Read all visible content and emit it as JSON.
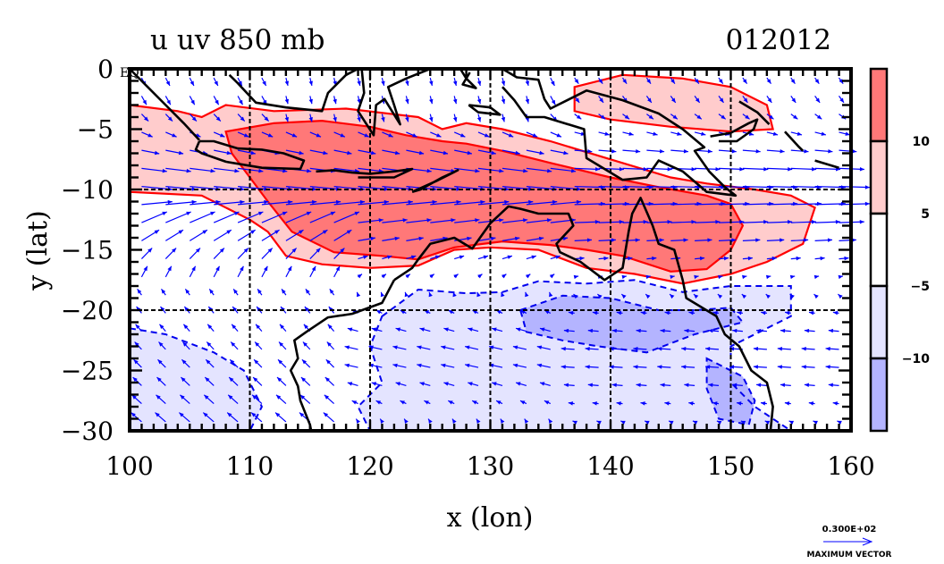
{
  "chart_data": {
    "type": "heatmap",
    "subtype": "filled-contour-with-wind-vectors",
    "title": "u uv 850 mb",
    "date_label": "012012",
    "xlabel": "x (lon)",
    "ylabel": "y (lat)",
    "xlim": [
      100,
      160
    ],
    "ylim": [
      -30,
      0
    ],
    "x_ticks": [
      100,
      110,
      120,
      130,
      140,
      150,
      160
    ],
    "y_ticks": [
      0,
      -5,
      -10,
      -15,
      -20,
      -25,
      -30
    ],
    "y_tick_labels": [
      "0",
      "−5",
      "−10",
      "−15",
      "−20",
      "−25",
      "−30"
    ],
    "y_zero_suffix": "EQ",
    "grid_lon": [
      110,
      120,
      130,
      140,
      150
    ],
    "grid_lat": [
      -10,
      -20
    ],
    "grid": true,
    "colorbar": {
      "placement": "right",
      "levels": [
        10,
        5,
        -5,
        -10
      ],
      "level_labels": [
        "10",
        "5",
        "−5",
        "−10"
      ],
      "bands": [
        {
          "range": ">10",
          "color": "#ff7878"
        },
        {
          "range": "5 to 10",
          "color": "#ffcccc"
        },
        {
          "range": "-5 to 5",
          "color": "#ffffff"
        },
        {
          "range": "-10 to -5",
          "color": "#e4e4ff"
        },
        {
          "range": "<-10",
          "color": "#b4b4ff"
        }
      ]
    },
    "contour_color_positive": "#ff0000",
    "contour_color_negative": "#0000ee",
    "vector_color": "#0000ff",
    "coast_color": "#000000",
    "regions": [
      {
        "name": "u-gt-5-west",
        "level": "5 to 10",
        "lonlat": [
          [
            100,
            -3
          ],
          [
            104,
            -3.5
          ],
          [
            106,
            -4
          ],
          [
            108,
            -3
          ],
          [
            112,
            -3.5
          ],
          [
            118,
            -3.3
          ],
          [
            124,
            -4
          ],
          [
            126,
            -5
          ],
          [
            128,
            -4.5
          ],
          [
            131,
            -5
          ],
          [
            135,
            -6
          ],
          [
            140,
            -7.5
          ],
          [
            145,
            -9
          ],
          [
            148,
            -9.5
          ],
          [
            152,
            -10
          ],
          [
            155,
            -10.5
          ],
          [
            157,
            -11.5
          ],
          [
            156,
            -14.5
          ],
          [
            153,
            -16
          ],
          [
            150,
            -17
          ],
          [
            146,
            -17.8
          ],
          [
            142,
            -17
          ],
          [
            138,
            -16.5
          ],
          [
            134,
            -15
          ],
          [
            130,
            -14.8
          ],
          [
            127,
            -15
          ],
          [
            124,
            -16.3
          ],
          [
            120,
            -16.5
          ],
          [
            116,
            -16.2
          ],
          [
            113,
            -15.5
          ],
          [
            111.5,
            -13.5
          ],
          [
            110,
            -12.5
          ],
          [
            108,
            -11.5
          ],
          [
            106,
            -10.5
          ],
          [
            100,
            -10.2
          ]
        ]
      },
      {
        "name": "u-gt-5-northeast",
        "level": "5 to 10",
        "lonlat": [
          [
            137,
            -1.5
          ],
          [
            141,
            -0.5
          ],
          [
            146,
            -0.8
          ],
          [
            150,
            -1.5
          ],
          [
            153,
            -3
          ],
          [
            153.5,
            -5
          ],
          [
            150,
            -5.2
          ],
          [
            145,
            -4.8
          ],
          [
            140,
            -4.2
          ],
          [
            137,
            -3.5
          ]
        ]
      },
      {
        "name": "u-gt-10-core",
        "level": ">10",
        "lonlat": [
          [
            108,
            -5.2
          ],
          [
            112,
            -4.5
          ],
          [
            116,
            -4.3
          ],
          [
            120,
            -4.8
          ],
          [
            123,
            -5.5
          ],
          [
            126,
            -6
          ],
          [
            128,
            -6.2
          ],
          [
            131,
            -6.8
          ],
          [
            135,
            -7.8
          ],
          [
            140,
            -9
          ],
          [
            144,
            -9.8
          ],
          [
            148,
            -10.5
          ],
          [
            150,
            -11.2
          ],
          [
            151,
            -13
          ],
          [
            150,
            -15
          ],
          [
            148,
            -16.6
          ],
          [
            145,
            -16.8
          ],
          [
            141,
            -15.5
          ],
          [
            138,
            -15
          ],
          [
            135,
            -14.6
          ],
          [
            131,
            -14.3
          ],
          [
            127,
            -14.8
          ],
          [
            124,
            -15.8
          ],
          [
            121,
            -15.5
          ],
          [
            117,
            -15.2
          ],
          [
            113.5,
            -13.5
          ],
          [
            111.5,
            -11
          ],
          [
            110,
            -9
          ],
          [
            108.5,
            -7
          ]
        ]
      },
      {
        "name": "u-lt-neg5-south",
        "level": "-10 to -5",
        "lonlat": [
          [
            121,
            -20.5
          ],
          [
            124,
            -18.3
          ],
          [
            128,
            -18.6
          ],
          [
            131,
            -18.5
          ],
          [
            134,
            -17.6
          ],
          [
            138,
            -17.8
          ],
          [
            142,
            -17.5
          ],
          [
            146,
            -18.5
          ],
          [
            150,
            -18
          ],
          [
            155,
            -18
          ],
          [
            155,
            -20.5
          ],
          [
            152,
            -22
          ],
          [
            150,
            -23
          ],
          [
            150,
            -26
          ],
          [
            152,
            -28
          ],
          [
            155,
            -30
          ],
          [
            120,
            -30
          ],
          [
            119,
            -28
          ],
          [
            121,
            -26
          ],
          [
            120,
            -23
          ]
        ]
      },
      {
        "name": "u-lt-neg5-southwest",
        "level": "-10 to -5",
        "lonlat": [
          [
            100,
            -21.5
          ],
          [
            103,
            -22
          ],
          [
            107,
            -23.5
          ],
          [
            109.5,
            -25
          ],
          [
            111,
            -28
          ],
          [
            110,
            -30
          ],
          [
            100,
            -30
          ]
        ]
      },
      {
        "name": "u-lt-neg10-core",
        "level": "<-10",
        "lonlat": [
          [
            132.5,
            -20
          ],
          [
            136,
            -18.8
          ],
          [
            140,
            -19
          ],
          [
            144,
            -20
          ],
          [
            147,
            -20
          ],
          [
            150,
            -19.8
          ],
          [
            151,
            -21
          ],
          [
            147,
            -22
          ],
          [
            143,
            -23.5
          ],
          [
            139,
            -23
          ],
          [
            136,
            -22.5
          ],
          [
            133,
            -21.8
          ]
        ]
      },
      {
        "name": "u-lt-neg10-coast",
        "level": "<-10",
        "lonlat": [
          [
            148,
            -24
          ],
          [
            151,
            -25.5
          ],
          [
            152,
            -27.5
          ],
          [
            151.5,
            -29.5
          ],
          [
            149,
            -29
          ],
          [
            148,
            -26.5
          ]
        ]
      }
    ],
    "coastlines": [
      {
        "name": "sumatra",
        "lonlat": [
          [
            100,
            0
          ],
          [
            101.5,
            -1.5
          ],
          [
            103,
            -3
          ],
          [
            104.5,
            -4.5
          ],
          [
            105.8,
            -5.9
          ]
        ]
      },
      {
        "name": "borneo",
        "lonlat": [
          [
            108.3,
            -0.5
          ],
          [
            109,
            -1.2
          ],
          [
            110.5,
            -2.8
          ],
          [
            113,
            -3.2
          ],
          [
            116,
            -3.5
          ],
          [
            116.5,
            -2
          ],
          [
            118,
            -0.5
          ],
          [
            119,
            0
          ]
        ]
      },
      {
        "name": "java",
        "lonlat": [
          [
            105.8,
            -6
          ],
          [
            107,
            -6
          ],
          [
            109,
            -6.6
          ],
          [
            111,
            -6.7
          ],
          [
            112.8,
            -7
          ],
          [
            114.5,
            -7.6
          ],
          [
            114.2,
            -8.3
          ],
          [
            111,
            -8.2
          ],
          [
            108,
            -7.7
          ],
          [
            106,
            -7
          ],
          [
            105.5,
            -6.7
          ],
          [
            105.8,
            -6
          ]
        ]
      },
      {
        "name": "lesser-sunda",
        "lonlat": [
          [
            115.5,
            -8.5
          ],
          [
            117,
            -8.4
          ],
          [
            118.5,
            -8.6
          ],
          [
            120,
            -8.7
          ],
          [
            122,
            -8.5
          ],
          [
            123.5,
            -8.3
          ],
          [
            122,
            -9
          ],
          [
            119,
            -9
          ]
        ]
      },
      {
        "name": "timor",
        "lonlat": [
          [
            123.5,
            -10.2
          ],
          [
            125.5,
            -9.3
          ],
          [
            127.3,
            -8.4
          ],
          [
            126,
            -9
          ],
          [
            124.2,
            -10
          ],
          [
            123.5,
            -10.2
          ]
        ]
      },
      {
        "name": "sulawesi",
        "lonlat": [
          [
            119.3,
            0
          ],
          [
            119.5,
            -2
          ],
          [
            119,
            -3.5
          ],
          [
            120.3,
            -5.5
          ],
          [
            120.5,
            -3
          ],
          [
            121.2,
            -2.5
          ],
          [
            122.5,
            -4.6
          ],
          [
            122,
            -3
          ],
          [
            121.5,
            -1.5
          ],
          [
            123,
            -0.8
          ],
          [
            125,
            0
          ]
        ]
      },
      {
        "name": "halmahera",
        "lonlat": [
          [
            127.5,
            0
          ],
          [
            128,
            -0.8
          ],
          [
            128.8,
            -1.6
          ],
          [
            127.7,
            -1.3
          ],
          [
            128.3,
            -0.3
          ]
        ]
      },
      {
        "name": "seram",
        "lonlat": [
          [
            128.2,
            -3
          ],
          [
            130,
            -3.2
          ],
          [
            130.8,
            -3.8
          ],
          [
            129,
            -3.6
          ],
          [
            128.2,
            -3
          ]
        ]
      },
      {
        "name": "new-guinea",
        "lonlat": [
          [
            131,
            0
          ],
          [
            132.2,
            -0.7
          ],
          [
            134,
            -0.9
          ],
          [
            134.5,
            -2.5
          ],
          [
            135,
            -3.3
          ],
          [
            138,
            -1.8
          ],
          [
            141,
            -2.6
          ],
          [
            144,
            -3.7
          ],
          [
            146,
            -5
          ],
          [
            147.8,
            -6.5
          ],
          [
            147,
            -6.8
          ],
          [
            148.2,
            -8.5
          ],
          [
            149.5,
            -9.8
          ],
          [
            150.4,
            -10.5
          ],
          [
            148,
            -10.2
          ],
          [
            146,
            -8.5
          ],
          [
            144,
            -7.6
          ],
          [
            143,
            -9
          ],
          [
            141,
            -9.2
          ],
          [
            139,
            -8
          ],
          [
            138,
            -7.4
          ],
          [
            137.8,
            -5
          ],
          [
            134.5,
            -4
          ],
          [
            133,
            -4
          ],
          [
            132,
            -2.6
          ],
          [
            131,
            -1.5
          ]
        ]
      },
      {
        "name": "new-britain",
        "lonlat": [
          [
            148.3,
            -5.6
          ],
          [
            150,
            -5.3
          ],
          [
            151.5,
            -4.5
          ],
          [
            152.2,
            -4.2
          ],
          [
            151.9,
            -5
          ],
          [
            150.5,
            -6
          ],
          [
            149,
            -6
          ]
        ]
      },
      {
        "name": "new-ireland",
        "lonlat": [
          [
            150.7,
            -2.7
          ],
          [
            152.2,
            -3.6
          ],
          [
            153.2,
            -4.6
          ]
        ]
      },
      {
        "name": "bougainville",
        "lonlat": [
          [
            154.5,
            -5.2
          ],
          [
            155.6,
            -6.4
          ],
          [
            156,
            -6.8
          ]
        ]
      },
      {
        "name": "solomons",
        "lonlat": [
          [
            157,
            -7.6
          ],
          [
            159,
            -8.2
          ]
        ]
      },
      {
        "name": "australia-north",
        "lonlat": [
          [
            122,
            -17.5
          ],
          [
            123.5,
            -16.5
          ],
          [
            124,
            -15.8
          ],
          [
            125,
            -14.5
          ],
          [
            127,
            -14
          ],
          [
            128.5,
            -14.9
          ],
          [
            130,
            -12.8
          ],
          [
            131.5,
            -11.4
          ],
          [
            132.5,
            -11.6
          ],
          [
            134,
            -12
          ],
          [
            136.5,
            -12
          ],
          [
            136.9,
            -13
          ],
          [
            135.5,
            -14.5
          ],
          [
            135.8,
            -15.2
          ],
          [
            137.5,
            -16
          ],
          [
            139.5,
            -17.5
          ],
          [
            141,
            -16.5
          ],
          [
            141.5,
            -13.5
          ],
          [
            141.8,
            -12
          ],
          [
            142.5,
            -10.7
          ],
          [
            143.5,
            -13
          ],
          [
            144,
            -14.5
          ],
          [
            145.3,
            -15
          ],
          [
            146,
            -17.5
          ],
          [
            146.3,
            -19
          ],
          [
            148.8,
            -20.5
          ],
          [
            149.5,
            -22
          ],
          [
            150.7,
            -23
          ],
          [
            151.7,
            -25
          ],
          [
            153,
            -26
          ],
          [
            153.5,
            -28
          ],
          [
            153.3,
            -30
          ]
        ]
      },
      {
        "name": "australia-west",
        "lonlat": [
          [
            122,
            -17.5
          ],
          [
            121,
            -19.4
          ],
          [
            118.5,
            -20.3
          ],
          [
            116.5,
            -20.6
          ],
          [
            114.7,
            -21.8
          ],
          [
            113.7,
            -22.5
          ],
          [
            114,
            -24
          ],
          [
            113.4,
            -25
          ],
          [
            114,
            -26.3
          ],
          [
            114.2,
            -27.5
          ],
          [
            115,
            -29.5
          ],
          [
            115.1,
            -30
          ]
        ]
      }
    ],
    "wind_field": {
      "grid_spacing_deg": [
        2,
        1.5
      ],
      "max_vector": "0.300E+02",
      "max_vector_label": "MAXIMUM VECTOR"
    }
  }
}
